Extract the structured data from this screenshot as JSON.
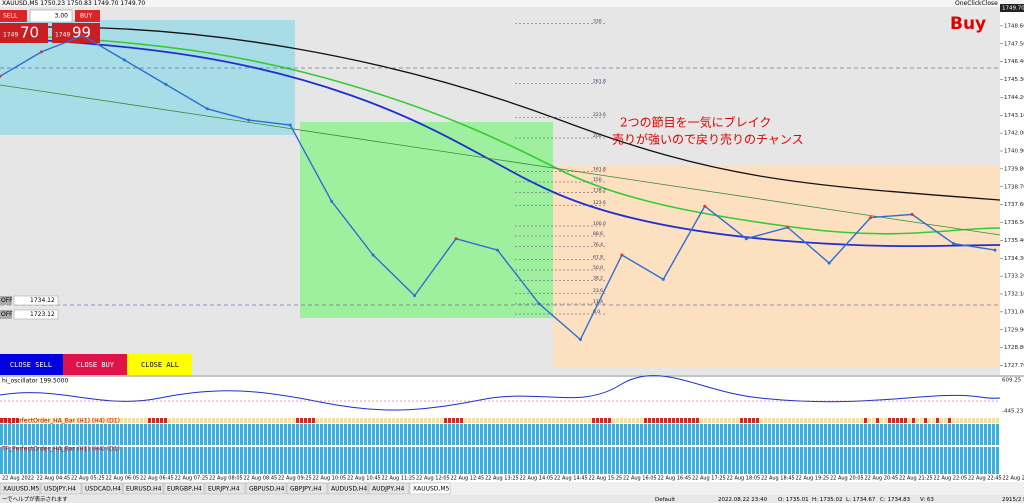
{
  "window_title": "XAUUSD,M5 1750.23 1750.83 1749.70 1749.70",
  "trade_panel": {
    "sell": "SELL",
    "lots": "3.00",
    "buy": "BUY",
    "bid_big": "1749",
    "bid_small": "70",
    "ask_big": "1749",
    "ask_small": "99"
  },
  "one_click": "OneClickClose",
  "signal": "Buy",
  "annotation": [
    "2つの節目を一気にブレイク",
    "売りが強いので戻り売りのチャンス"
  ],
  "price_axis": {
    "current": {
      "value": 1749.7,
      "label": "1749.70"
    },
    "ylim": [
      1727.3,
      1749.7
    ],
    "ticks": [
      {
        "value": 1748.6,
        "label": "1748.60"
      },
      {
        "value": 1747.5,
        "label": "1747.50"
      },
      {
        "value": 1746.4,
        "label": "1746.40"
      },
      {
        "value": 1745.3,
        "label": "1745.30"
      },
      {
        "value": 1744.2,
        "label": "1744.20"
      },
      {
        "value": 1743.1,
        "label": "1743.10"
      },
      {
        "value": 1742,
        "label": "1742.00"
      },
      {
        "value": 1740.9,
        "label": "1740.90"
      },
      {
        "value": 1739.8,
        "label": "1739.80"
      },
      {
        "value": 1738.7,
        "label": "1738.70"
      },
      {
        "value": 1737.6,
        "label": "1737.60"
      },
      {
        "value": 1736.5,
        "label": "1736.50"
      },
      {
        "value": 1735.4,
        "label": "1735.40"
      },
      {
        "value": 1734.3,
        "label": "1734.30"
      },
      {
        "value": 1733.2,
        "label": "1733.20"
      },
      {
        "value": 1732.1,
        "label": "1732.10"
      },
      {
        "value": 1731,
        "label": "1731.00"
      },
      {
        "value": 1729.9,
        "label": "1729.90"
      },
      {
        "value": 1728.8,
        "label": "1728.80"
      },
      {
        "value": 1727.7,
        "label": "1727.70"
      }
    ]
  },
  "close": [
    1745.5,
    1747.0,
    1748.0,
    1746.5,
    1745.0,
    1743.5,
    1742.8,
    1742.5,
    1737.8,
    1734.5,
    1732.0,
    1735.5,
    1734.8,
    1731.5,
    1729.3,
    1734.5,
    1733.0,
    1737.5,
    1735.5,
    1736.2,
    1734.0,
    1736.8,
    1737.0,
    1735.2,
    1734.8
  ],
  "fib_levels": [
    330,
    261.8,
    223.6,
    200,
    161.8,
    150,
    138.2,
    123.6,
    {
      "value": 100,
      "label": "100.0"
    },
    88.6,
    76.4,
    61.8,
    {
      "value": 50,
      "label": "50.0"
    },
    38.2,
    23.6,
    11.4,
    {
      "value": 0,
      "label": "0.0"
    }
  ],
  "lines": [
    {
      "label": "OFF",
      "price": "1734.12"
    },
    {
      "label": "OFF",
      "price": "1723.12"
    }
  ],
  "buttons": [
    "CLOSE SELL",
    "CLOSE BUY",
    "CLOSE ALL"
  ],
  "oscillator": {
    "label": "hi_oscillator 199.5000",
    "max": "609.25",
    "min": "-445.23"
  },
  "indicators": [
    "TF_PerfectOrder_HA_Bar (H1) (H4) (D1)",
    "TF_PerfectOrder_HA_Bar (H1) (H4) (D1)"
  ],
  "time_axis": [
    "22 Aug 2022",
    "22 Aug 04:45",
    "22 Aug 05:25",
    "22 Aug 06:05",
    "22 Aug 06:45",
    "22 Aug 07:25",
    "22 Aug 08:05",
    "22 Aug 08:45",
    "22 Aug 09:25",
    "22 Aug 10:05",
    "22 Aug 10:45",
    "22 Aug 11:25",
    "22 Aug 12:05",
    "22 Aug 12:45",
    "22 Aug 13:25",
    "22 Aug 14:05",
    "22 Aug 14:45",
    "22 Aug 15:25",
    "22 Aug 16:05",
    "22 Aug 16:45",
    "22 Aug 17:25",
    "22 Aug 18:05",
    "22 Aug 18:45",
    "22 Aug 19:25",
    "22 Aug 20:05",
    "22 Aug 20:45",
    "22 Aug 21:25",
    "22 Aug 22:05",
    "22 Aug 22:45",
    "22 Aug 23:25"
  ],
  "tabs": [
    "XAUUSD,M5",
    "USDJPY,H4",
    "USDCAD,H4",
    "EURUSD,H4",
    "EURGBP,H4",
    "EURJPY,H4",
    "GBPUSD,H4",
    "GBPJPY,H4",
    "AUDUSD,H4",
    "AUDJPY,H4",
    "XAUUSD,M5"
  ],
  "status": [
    "ーでヘルプが表示されます",
    "Default",
    "2022.08.22 23:40",
    "O: 1735.01",
    "H: 1735.02",
    "L: 1734.67",
    "C: 1734.83",
    "V: 63",
    "2915/2 kb"
  ]
}
